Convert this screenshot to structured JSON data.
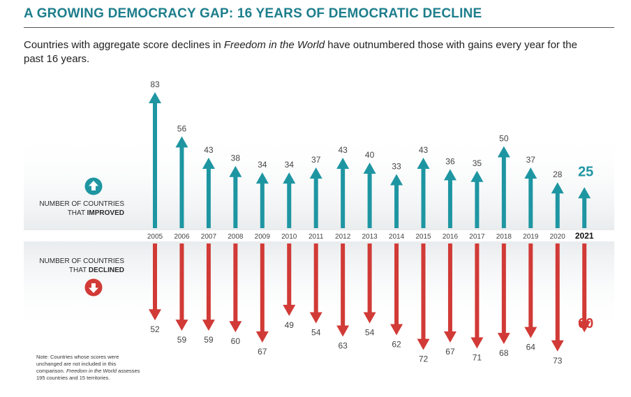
{
  "header": {
    "title": "A GROWING DEMOCRACY GAP: 16 YEARS OF DEMOCRATIC DECLINE",
    "subtitle_before": "Countries with aggregate score declines in ",
    "subtitle_italic": "Freedom in the World",
    "subtitle_after": " have outnumbered those with gains every year for the past 16 years."
  },
  "legend": {
    "improved_line1": "NUMBER OF COUNTRIES",
    "improved_prefix": "THAT ",
    "improved_bold": "IMPROVED",
    "declined_line1": "NUMBER OF COUNTRIES",
    "declined_prefix": "THAT ",
    "declined_bold": "DECLINED",
    "improved_icon": "up-arrow-circle-icon",
    "declined_icon": "down-arrow-circle-icon"
  },
  "note": {
    "prefix": "Note: Countries whose scores were unchanged are not included in this comparison. ",
    "italic": "Freedom in the World",
    "suffix": " assesses 195 countries and 15 territories."
  },
  "colors": {
    "improved": "#1e96a2",
    "declined": "#d13a36",
    "title": "#1d7e8c"
  },
  "chart_data": {
    "type": "bar",
    "categories": [
      "2005",
      "2006",
      "2007",
      "2008",
      "2009",
      "2010",
      "2011",
      "2012",
      "2013",
      "2014",
      "2015",
      "2016",
      "2017",
      "2018",
      "2019",
      "2020",
      "2021"
    ],
    "series": [
      {
        "name": "Number of countries that improved",
        "values": [
          83,
          56,
          43,
          38,
          34,
          34,
          37,
          43,
          40,
          33,
          43,
          36,
          35,
          50,
          37,
          28,
          25
        ]
      },
      {
        "name": "Number of countries that declined",
        "values": [
          52,
          59,
          59,
          60,
          67,
          49,
          54,
          63,
          54,
          62,
          72,
          67,
          71,
          68,
          64,
          73,
          60
        ]
      }
    ],
    "highlight_category": "2021",
    "grid": false
  }
}
